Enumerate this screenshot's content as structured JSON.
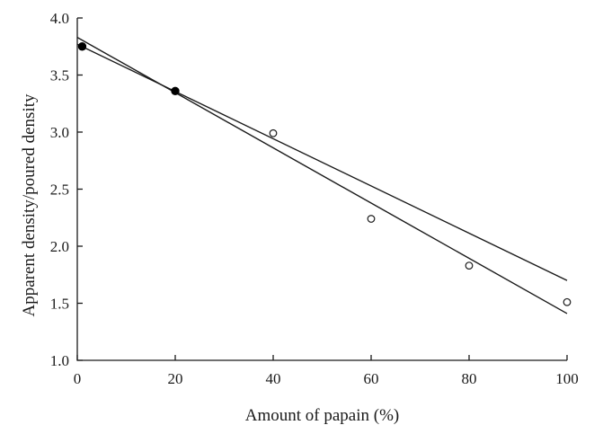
{
  "chart_data": {
    "type": "scatter",
    "title": "",
    "xlabel": "Amount of papain (%)",
    "ylabel": "Apparent density/poured density",
    "xlim": [
      0,
      100
    ],
    "ylim": [
      1.0,
      4.0
    ],
    "x_ticks": [
      0,
      20,
      40,
      60,
      80,
      100
    ],
    "y_ticks": [
      1.0,
      1.5,
      2.0,
      2.5,
      3.0,
      3.5,
      4.0
    ],
    "x_tick_labels": [
      "0",
      "20",
      "40",
      "60",
      "80",
      "100"
    ],
    "y_tick_labels": [
      "1.0",
      "1.5",
      "2.0",
      "2.5",
      "3.0",
      "3.5",
      "4.0"
    ],
    "grid": false,
    "legend": "none",
    "series": [
      {
        "marker": "filled-circle",
        "color": "#000000",
        "points": [
          {
            "x": 1,
            "y": 3.75
          },
          {
            "x": 20,
            "y": 3.36
          }
        ]
      },
      {
        "marker": "open-circle",
        "color": "#1a1a1a",
        "points": [
          {
            "x": 40,
            "y": 2.99
          },
          {
            "x": 60,
            "y": 2.24
          },
          {
            "x": 80,
            "y": 1.83
          },
          {
            "x": 100,
            "y": 1.51
          }
        ]
      }
    ],
    "lines": [
      {
        "start": {
          "x": 0,
          "y": 3.83
        },
        "end": {
          "x": 100,
          "y": 1.41
        }
      },
      {
        "start": {
          "x": 0,
          "y": 3.77
        },
        "end": {
          "x": 100,
          "y": 1.7
        }
      }
    ]
  }
}
